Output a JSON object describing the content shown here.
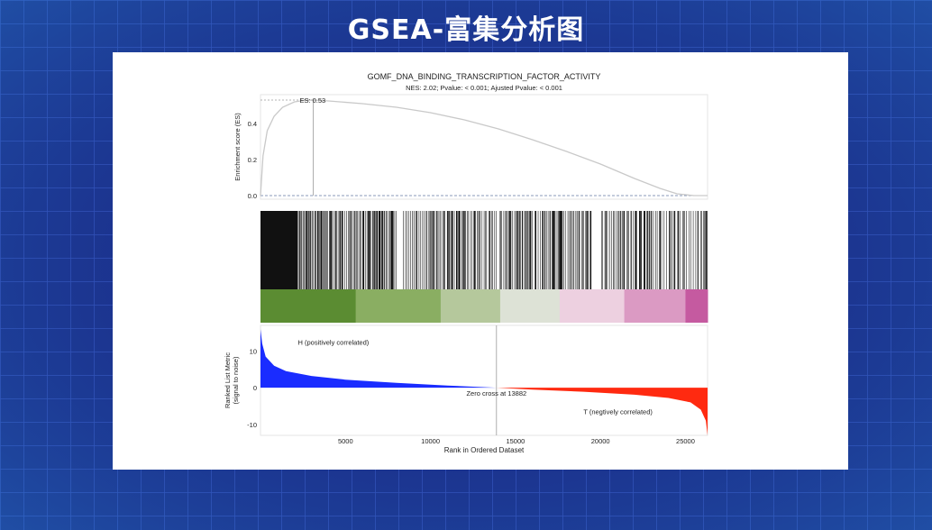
{
  "page": {
    "title": "GSEA-富集分析图"
  },
  "colors": {
    "background": "#1e2f8e",
    "card": "#ffffff",
    "es_curve": "#c9c9c9",
    "positive": "#1a2cff",
    "negative": "#ff2a10",
    "heat_bands": [
      "#5b8c32",
      "#8aae62",
      "#b5c89c",
      "#dde2d6",
      "#edd0e0",
      "#db9ac3",
      "#c55aa0"
    ]
  },
  "chart_data": {
    "type": "line",
    "title": "GOMF_DNA_BINDING_TRANSCRIPTION_FACTOR_ACTIVITY",
    "subtitle": "NES: 2.02;  Pvalue: < 0.001;  Ajusted Pvalue: < 0.001",
    "xlabel": "Rank in Ordered Dataset",
    "xlim": [
      0,
      26300
    ],
    "xticks": [
      "5000",
      "10000",
      "15000",
      "20000",
      "25000"
    ],
    "xtick_values": [
      5000,
      10000,
      15000,
      20000,
      25000
    ],
    "es_panel": {
      "ylabel": "Enrichment score (ES)",
      "ylim": [
        -0.02,
        0.56
      ],
      "yticks": [
        "0.0",
        "0.2",
        "0.4"
      ],
      "ytick_values": [
        0,
        0.2,
        0.4
      ],
      "es_label": "ES: 0.53",
      "peak_rank": 3100,
      "peak_es": 0.53,
      "x": [
        0,
        150,
        400,
        800,
        1300,
        2000,
        2600,
        3100,
        4000,
        6000,
        8000,
        10000,
        12000,
        14000,
        16000,
        18000,
        20000,
        22000,
        23500,
        24500,
        25500,
        26300
      ],
      "y": [
        0.0,
        0.22,
        0.36,
        0.44,
        0.49,
        0.52,
        0.528,
        0.53,
        0.525,
        0.51,
        0.49,
        0.46,
        0.42,
        0.37,
        0.31,
        0.245,
        0.175,
        0.095,
        0.04,
        0.01,
        0.0,
        0.0
      ]
    },
    "hits_panel": {
      "dense_segments": [
        [
          0,
          2200
        ]
      ],
      "gap_segments": [
        [
          8000,
          8400
        ],
        [
          19500,
          20000
        ],
        [
          13900,
          14100
        ]
      ]
    },
    "heat_bands": [
      {
        "start": 0,
        "end": 5600
      },
      {
        "start": 5600,
        "end": 10600
      },
      {
        "start": 10600,
        "end": 14100
      },
      {
        "start": 14100,
        "end": 17600
      },
      {
        "start": 17600,
        "end": 21400
      },
      {
        "start": 21400,
        "end": 25000
      },
      {
        "start": 25000,
        "end": 26300
      }
    ],
    "metric_panel": {
      "ylabel": "Ranked List Metric\n(signal to noise)",
      "ylim": [
        -13,
        17
      ],
      "yticks": [
        "10",
        "0",
        "-10"
      ],
      "ytick_values": [
        10,
        0,
        -10
      ],
      "zero_cross": 13882,
      "zero_cross_label": "Zero cross at 13882",
      "pos_label": "H (positively correlated)",
      "neg_label": "T (negtively correlated)",
      "x": [
        0,
        100,
        300,
        800,
        1500,
        3000,
        5000,
        8000,
        11000,
        13882,
        16000,
        19000,
        22000,
        24000,
        25300,
        25900,
        26200,
        26300
      ],
      "y": [
        16,
        12,
        8.5,
        6,
        4.5,
        3.2,
        2.2,
        1.3,
        0.6,
        0.0,
        -0.5,
        -1.1,
        -1.9,
        -2.8,
        -4.0,
        -6.0,
        -9.0,
        -13
      ]
    }
  }
}
